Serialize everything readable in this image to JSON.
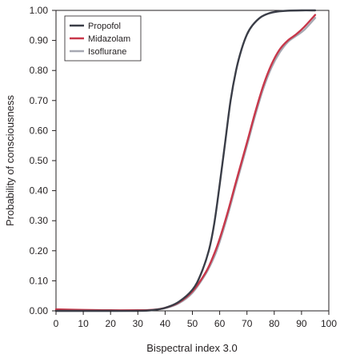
{
  "chart_data": {
    "type": "line",
    "title": "",
    "xlabel": "Bispectral index 3.0",
    "ylabel": "Probability of consciousness",
    "xlim": [
      0,
      100
    ],
    "ylim": [
      0,
      1
    ],
    "x_ticks": [
      "0",
      "10",
      "20",
      "30",
      "40",
      "50",
      "60",
      "70",
      "80",
      "90",
      "100"
    ],
    "y_ticks": [
      "0.00",
      "0.10",
      "0.20",
      "0.30",
      "0.40",
      "0.50",
      "0.60",
      "0.70",
      "0.80",
      "0.90",
      "1.00"
    ],
    "grid": false,
    "legend_position": "top-left",
    "series": [
      {
        "name": "Propofol",
        "color": "#3a3d47",
        "x": [
          0,
          10,
          20,
          30,
          35,
          40,
          45,
          50,
          53,
          56,
          58,
          60,
          62,
          64,
          66,
          68,
          70,
          72,
          75,
          78,
          81,
          85,
          90,
          95
        ],
        "y": [
          0.0,
          0.0,
          0.0,
          0.0,
          0.002,
          0.01,
          0.03,
          0.07,
          0.12,
          0.2,
          0.29,
          0.42,
          0.56,
          0.7,
          0.8,
          0.87,
          0.92,
          0.95,
          0.977,
          0.99,
          0.996,
          0.999,
          1.0,
          1.0
        ]
      },
      {
        "name": "Midazolam",
        "color": "#c8374a",
        "x": [
          0,
          10,
          20,
          30,
          35,
          40,
          45,
          50,
          55,
          58,
          60,
          63,
          66,
          70,
          73,
          76,
          79,
          82,
          85,
          88,
          91,
          95
        ],
        "y": [
          0.005,
          0.003,
          0.002,
          0.002,
          0.003,
          0.01,
          0.028,
          0.065,
          0.13,
          0.19,
          0.24,
          0.33,
          0.43,
          0.56,
          0.66,
          0.75,
          0.82,
          0.87,
          0.9,
          0.92,
          0.945,
          0.985
        ]
      },
      {
        "name": "Isoflurane",
        "color": "#a6a8b2",
        "x": [
          0,
          10,
          20,
          30,
          35,
          40,
          45,
          50,
          55,
          58,
          60,
          63,
          66,
          70,
          73,
          76,
          79,
          82,
          85,
          88,
          91,
          95
        ],
        "y": [
          0.0,
          0.0,
          0.0,
          0.001,
          0.003,
          0.009,
          0.025,
          0.06,
          0.125,
          0.18,
          0.23,
          0.32,
          0.42,
          0.55,
          0.65,
          0.74,
          0.81,
          0.86,
          0.895,
          0.915,
          0.935,
          0.975
        ]
      }
    ]
  }
}
